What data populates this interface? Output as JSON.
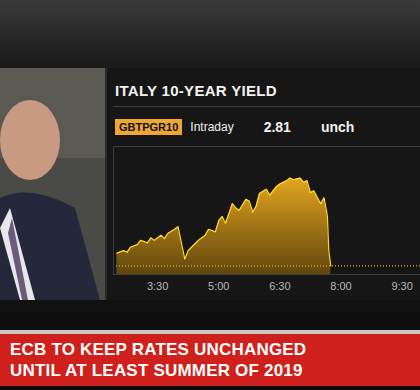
{
  "chart_data": {
    "type": "area",
    "title": "ITALY 10-YEAR YIELD",
    "ticker": "GBTPGR10",
    "period": "Intraday",
    "last_value": 2.81,
    "change": "unch",
    "color": "#e3a51f",
    "x": [
      150,
      160,
      165,
      170,
      180,
      185,
      195,
      200,
      205,
      215,
      220,
      225,
      235,
      240,
      250,
      255,
      265,
      270,
      280,
      285,
      295,
      300,
      305,
      310,
      320,
      325,
      330,
      340,
      345,
      350,
      355,
      360,
      370,
      375,
      385,
      390,
      400,
      405,
      410,
      420,
      425,
      430,
      435,
      440,
      450,
      455,
      460,
      462,
      465
    ],
    "values": [
      2.825,
      2.828,
      2.826,
      2.832,
      2.835,
      2.84,
      2.837,
      2.843,
      2.84,
      2.846,
      2.842,
      2.848,
      2.853,
      2.856,
      2.818,
      2.828,
      2.836,
      2.84,
      2.846,
      2.853,
      2.85,
      2.863,
      2.868,
      2.86,
      2.883,
      2.878,
      2.875,
      2.888,
      2.886,
      2.873,
      2.88,
      2.895,
      2.9,
      2.893,
      2.903,
      2.906,
      2.91,
      2.913,
      2.911,
      2.913,
      2.908,
      2.91,
      2.896,
      2.898,
      2.883,
      2.89,
      2.868,
      2.828,
      2.81
    ],
    "xlim": [
      145,
      600
    ],
    "ylim": [
      2.8,
      2.95
    ],
    "xticks": [
      {
        "value": 210,
        "label": "3:30"
      },
      {
        "value": 300,
        "label": "5:00"
      },
      {
        "value": 390,
        "label": "6:30"
      },
      {
        "value": 480,
        "label": "8:00"
      },
      {
        "value": 570,
        "label": "9:30"
      }
    ],
    "tick_labels": "x",
    "grid": false
  },
  "headline": {
    "lines": [
      "ECB TO KEEP RATES UNCHANGED",
      "UNTIL AT LEAST SUMMER OF 2019"
    ]
  }
}
